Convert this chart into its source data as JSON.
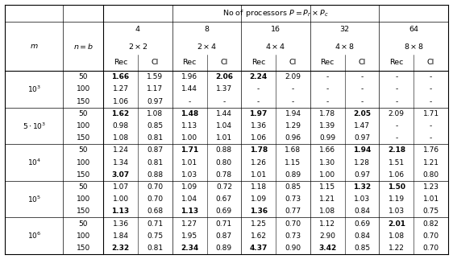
{
  "caption": "No of processors $P = P_r \\times P_c$",
  "proc_labels": [
    "4",
    "8",
    "16",
    "32",
    "64"
  ],
  "grid_labels": [
    "$2\\times 2$",
    "$2\\times 4$",
    "$4\\times 4$",
    "$4\\times 8$",
    "$8\\times 8$"
  ],
  "rows": [
    {
      "m": "$10^3$",
      "b": "50",
      "vals": [
        "1.66",
        "1.59",
        "1.96",
        "2.06",
        "2.24",
        "2.09",
        "-",
        "-",
        "-",
        "-"
      ],
      "bold": [
        1,
        0,
        0,
        1,
        1,
        0,
        0,
        0,
        0,
        0
      ]
    },
    {
      "m": "$10^3$",
      "b": "100",
      "vals": [
        "1.27",
        "1.17",
        "1.44",
        "1.37",
        "-",
        "-",
        "-",
        "-",
        "-",
        "-"
      ],
      "bold": [
        0,
        0,
        0,
        0,
        0,
        0,
        0,
        0,
        0,
        0
      ]
    },
    {
      "m": "$10^3$",
      "b": "150",
      "vals": [
        "1.06",
        "0.97",
        "-",
        "-",
        "-",
        "-",
        "-",
        "-",
        "-",
        "-"
      ],
      "bold": [
        0,
        0,
        0,
        0,
        0,
        0,
        0,
        0,
        0,
        0
      ]
    },
    {
      "m": "$5\\cdot 10^3$",
      "b": "50",
      "vals": [
        "1.62",
        "1.08",
        "1.48",
        "1.44",
        "1.97",
        "1.94",
        "1.78",
        "2.05",
        "2.09",
        "1.71"
      ],
      "bold": [
        1,
        0,
        1,
        0,
        1,
        0,
        0,
        1,
        0,
        0
      ]
    },
    {
      "m": "$5\\cdot 10^3$",
      "b": "100",
      "vals": [
        "0.98",
        "0.85",
        "1.13",
        "1.04",
        "1.36",
        "1.29",
        "1.39",
        "1.47",
        "-",
        "-"
      ],
      "bold": [
        0,
        0,
        0,
        0,
        0,
        0,
        0,
        0,
        0,
        0
      ]
    },
    {
      "m": "$5\\cdot 10^3$",
      "b": "150",
      "vals": [
        "1.08",
        "0.81",
        "1.00",
        "1.01",
        "1.06",
        "0.96",
        "0.99",
        "0.97",
        "-",
        "-"
      ],
      "bold": [
        0,
        0,
        0,
        0,
        0,
        0,
        0,
        0,
        0,
        0
      ]
    },
    {
      "m": "$10^4$",
      "b": "50",
      "vals": [
        "1.24",
        "0.87",
        "1.71",
        "0.88",
        "1.78",
        "1.68",
        "1.66",
        "1.94",
        "2.18",
        "1.76"
      ],
      "bold": [
        0,
        0,
        1,
        0,
        1,
        0,
        0,
        1,
        1,
        0
      ]
    },
    {
      "m": "$10^4$",
      "b": "100",
      "vals": [
        "1.34",
        "0.81",
        "1.01",
        "0.80",
        "1.26",
        "1.15",
        "1.30",
        "1.28",
        "1.51",
        "1.21"
      ],
      "bold": [
        0,
        0,
        0,
        0,
        0,
        0,
        0,
        0,
        0,
        0
      ]
    },
    {
      "m": "$10^4$",
      "b": "150",
      "vals": [
        "3.07",
        "0.88",
        "1.03",
        "0.78",
        "1.01",
        "0.89",
        "1.00",
        "0.97",
        "1.06",
        "0.80"
      ],
      "bold": [
        1,
        0,
        0,
        0,
        0,
        0,
        0,
        0,
        0,
        0
      ]
    },
    {
      "m": "$10^5$",
      "b": "50",
      "vals": [
        "1.07",
        "0.70",
        "1.09",
        "0.72",
        "1.18",
        "0.85",
        "1.15",
        "1.32",
        "1.50",
        "1.23"
      ],
      "bold": [
        0,
        0,
        0,
        0,
        0,
        0,
        0,
        1,
        1,
        0
      ]
    },
    {
      "m": "$10^5$",
      "b": "100",
      "vals": [
        "1.00",
        "0.70",
        "1.04",
        "0.67",
        "1.09",
        "0.73",
        "1.21",
        "1.03",
        "1.19",
        "1.01"
      ],
      "bold": [
        0,
        0,
        0,
        0,
        0,
        0,
        0,
        0,
        0,
        0
      ]
    },
    {
      "m": "$10^5$",
      "b": "150",
      "vals": [
        "1.13",
        "0.68",
        "1.13",
        "0.69",
        "1.36",
        "0.77",
        "1.08",
        "0.84",
        "1.03",
        "0.75"
      ],
      "bold": [
        1,
        0,
        1,
        0,
        1,
        0,
        0,
        0,
        0,
        0
      ]
    },
    {
      "m": "$10^6$",
      "b": "50",
      "vals": [
        "1.36",
        "0.71",
        "1.27",
        "0.71",
        "1.25",
        "0.70",
        "1.12",
        "0.69",
        "2.01",
        "0.82"
      ],
      "bold": [
        0,
        0,
        0,
        0,
        0,
        0,
        0,
        0,
        1,
        0
      ]
    },
    {
      "m": "$10^6$",
      "b": "100",
      "vals": [
        "1.84",
        "0.75",
        "1.95",
        "0.87",
        "1.62",
        "0.73",
        "2.90",
        "0.84",
        "1.08",
        "0.70"
      ],
      "bold": [
        0,
        0,
        0,
        0,
        0,
        0,
        0,
        0,
        0,
        0
      ]
    },
    {
      "m": "$10^6$",
      "b": "150",
      "vals": [
        "2.32",
        "0.81",
        "2.34",
        "0.89",
        "4.37",
        "0.90",
        "3.42",
        "0.85",
        "1.22",
        "0.70"
      ],
      "bold": [
        1,
        0,
        1,
        0,
        1,
        0,
        1,
        0,
        0,
        0
      ]
    }
  ],
  "group_separators": [
    3,
    6,
    9,
    12
  ],
  "m_groups": [
    [
      0,
      3,
      "$10^3$"
    ],
    [
      3,
      6,
      "$5\\cdot 10^3$"
    ],
    [
      6,
      9,
      "$10^4$"
    ],
    [
      9,
      12,
      "$10^5$"
    ],
    [
      12,
      15,
      "$10^6$"
    ]
  ],
  "background_color": "#ffffff",
  "font_size": 6.5,
  "header_font_size": 6.8
}
